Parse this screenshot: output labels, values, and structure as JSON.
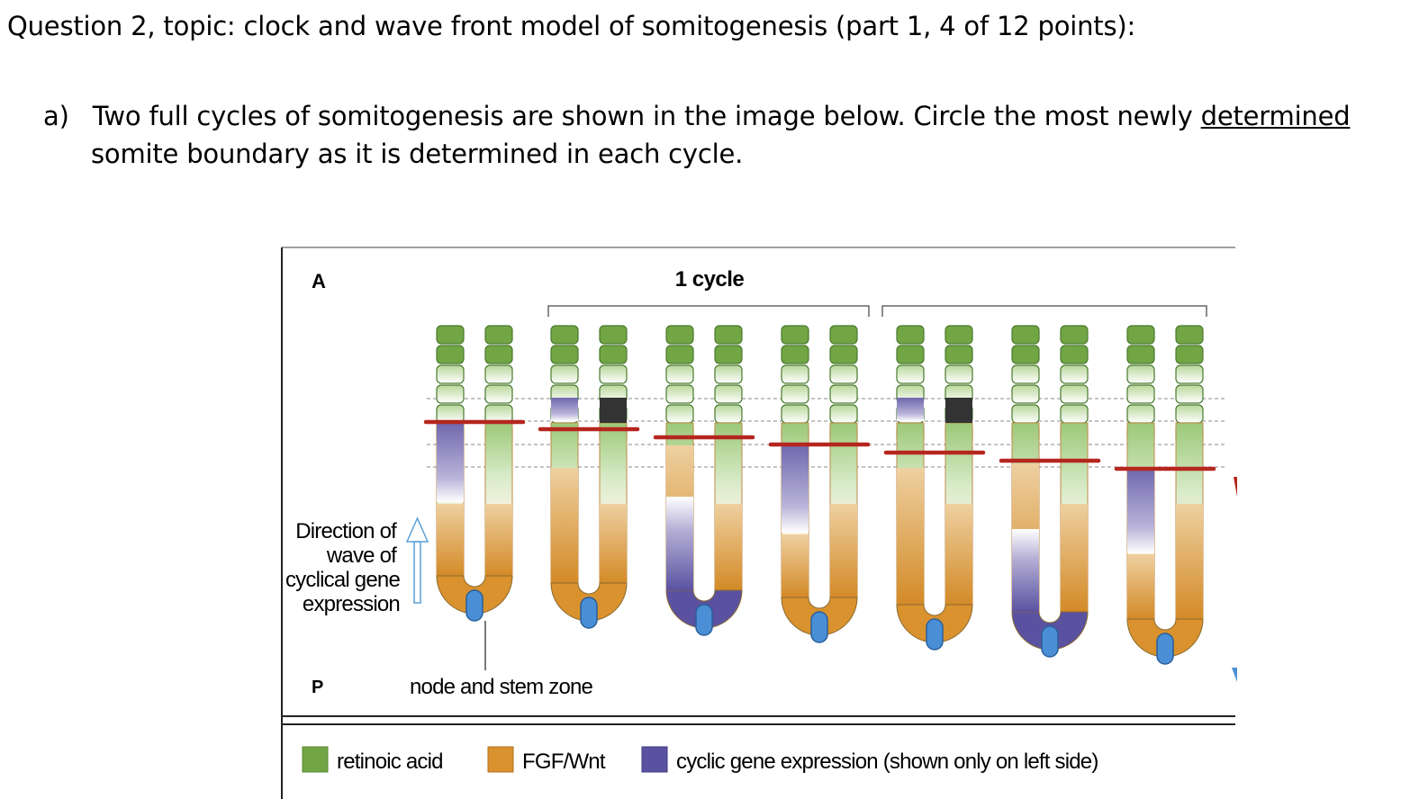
{
  "question": {
    "title": "Question 2,  topic: clock and wave front model of somitogenesis (part 1, 4 of 12 points):",
    "part_a_marker": "a)",
    "part_a_text_1": "Two full cycles of somitogenesis are shown in the image below.  Circle the most newly ",
    "part_a_underlined": "determined",
    "part_a_text_2": "somite boundary as it is determined in each cycle."
  },
  "figure": {
    "panel_label": "A",
    "cycle_label": "1 cycle",
    "direction_label": [
      "Direction of",
      "wave of",
      "cyclical gene",
      "expression"
    ],
    "posterior_label": "P",
    "node_label": "node and stem zone",
    "legend": [
      {
        "name": "retinoic acid",
        "color": "#72a544"
      },
      {
        "name": "FGF/Wnt",
        "color": "#d9922e"
      },
      {
        "name": "cyclic gene expression (shown only on left side)",
        "color": "#5a52a0"
      }
    ],
    "colors": {
      "somite": "#72a544",
      "fgf": "#d9922e",
      "cyclic": "#5a52a0",
      "boundary_line": "#b5261e",
      "node": "#4a8fd6",
      "new_somite": "#333333"
    }
  }
}
